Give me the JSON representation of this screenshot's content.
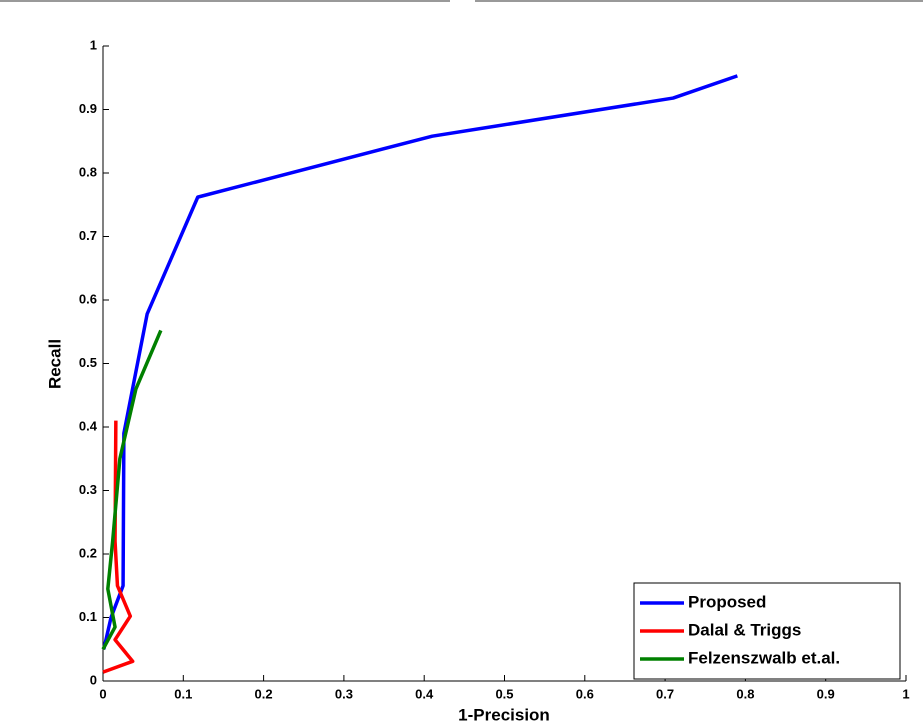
{
  "chart_data": {
    "type": "line",
    "xlabel": "1-Precision",
    "ylabel": "Recall",
    "xlim": [
      0,
      1
    ],
    "ylim": [
      0,
      1
    ],
    "xticks": [
      0,
      0.1,
      0.2,
      0.3,
      0.4,
      0.5,
      0.6,
      0.7,
      0.8,
      0.9,
      1
    ],
    "yticks": [
      0,
      0.1,
      0.2,
      0.3,
      0.4,
      0.5,
      0.6,
      0.7,
      0.8,
      0.9,
      1
    ],
    "legend": "lower right",
    "series": [
      {
        "name": "Proposed",
        "color": "#0000ff",
        "x": [
          0.001,
          0.01,
          0.025,
          0.026,
          0.055,
          0.118,
          0.41,
          0.71,
          0.79
        ],
        "values": [
          0.05,
          0.1,
          0.15,
          0.39,
          0.578,
          0.762,
          0.858,
          0.918,
          0.953
        ]
      },
      {
        "name": "Dalal & Triggs",
        "color": "#ff0000",
        "x": [
          0.0,
          0.037,
          0.015,
          0.034,
          0.018,
          0.015,
          0.016
        ],
        "values": [
          0.014,
          0.031,
          0.065,
          0.102,
          0.15,
          0.22,
          0.41
        ]
      },
      {
        "name": "Felzenszwalb et.al.",
        "color": "#008000",
        "x": [
          0.0,
          0.015,
          0.006,
          0.012,
          0.021,
          0.041,
          0.072
        ],
        "values": [
          0.05,
          0.085,
          0.145,
          0.22,
          0.35,
          0.46,
          0.552
        ]
      }
    ]
  }
}
